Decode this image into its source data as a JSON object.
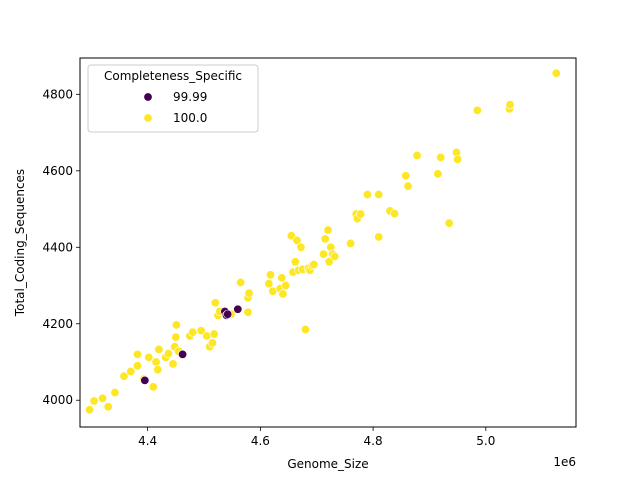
{
  "chart_data": {
    "type": "scatter",
    "xlabel": "Genome_Size",
    "ylabel": "Total_Coding_Sequences",
    "x_offset_label": "1e6",
    "x_scale": 1000000,
    "xlim": [
      4.28,
      5.16
    ],
    "ylim": [
      3930,
      4895
    ],
    "x_ticks": [
      4.4,
      4.6,
      4.8,
      5.0
    ],
    "x_tick_labels": [
      "4.4",
      "4.6",
      "4.8",
      "5.0"
    ],
    "y_ticks": [
      4000,
      4200,
      4400,
      4600,
      4800
    ],
    "y_tick_labels": [
      "4000",
      "4200",
      "4400",
      "4600",
      "4800"
    ],
    "grid": false,
    "legend": {
      "title": "Completeness_Specific",
      "placement": "top-left",
      "entries": [
        {
          "label": "99.99",
          "color": "#440154"
        },
        {
          "label": "100.0",
          "color": "#fde725"
        }
      ]
    },
    "series": [
      {
        "name": "100.0",
        "color": "#fde725",
        "points": [
          [
            4.297,
            3975
          ],
          [
            4.305,
            3998
          ],
          [
            4.32,
            4005
          ],
          [
            4.33,
            3983
          ],
          [
            4.342,
            4020
          ],
          [
            4.358,
            4063
          ],
          [
            4.37,
            4075
          ],
          [
            4.382,
            4090
          ],
          [
            4.382,
            4120
          ],
          [
            4.393,
            4055
          ],
          [
            4.402,
            4112
          ],
          [
            4.41,
            4035
          ],
          [
            4.415,
            4100
          ],
          [
            4.418,
            4080
          ],
          [
            4.42,
            4133
          ],
          [
            4.432,
            4112
          ],
          [
            4.437,
            4122
          ],
          [
            4.445,
            4095
          ],
          [
            4.448,
            4140
          ],
          [
            4.45,
            4165
          ],
          [
            4.451,
            4197
          ],
          [
            4.455,
            4128
          ],
          [
            4.475,
            4168
          ],
          [
            4.48,
            4178
          ],
          [
            4.495,
            4182
          ],
          [
            4.505,
            4168
          ],
          [
            4.51,
            4140
          ],
          [
            4.515,
            4150
          ],
          [
            4.518,
            4173
          ],
          [
            4.52,
            4255
          ],
          [
            4.525,
            4222
          ],
          [
            4.528,
            4232
          ],
          [
            4.548,
            4225
          ],
          [
            4.565,
            4308
          ],
          [
            4.578,
            4268
          ],
          [
            4.58,
            4280
          ],
          [
            4.578,
            4230
          ],
          [
            4.615,
            4305
          ],
          [
            4.618,
            4328
          ],
          [
            4.622,
            4285
          ],
          [
            4.635,
            4292
          ],
          [
            4.638,
            4320
          ],
          [
            4.64,
            4278
          ],
          [
            4.645,
            4300
          ],
          [
            4.655,
            4430
          ],
          [
            4.658,
            4335
          ],
          [
            4.662,
            4362
          ],
          [
            4.665,
            4418
          ],
          [
            4.668,
            4340
          ],
          [
            4.672,
            4400
          ],
          [
            4.675,
            4342
          ],
          [
            4.68,
            4185
          ],
          [
            4.685,
            4345
          ],
          [
            4.688,
            4340
          ],
          [
            4.692,
            4352
          ],
          [
            4.695,
            4355
          ],
          [
            4.712,
            4382
          ],
          [
            4.715,
            4422
          ],
          [
            4.72,
            4445
          ],
          [
            4.722,
            4362
          ],
          [
            4.725,
            4400
          ],
          [
            4.728,
            4382
          ],
          [
            4.732,
            4376
          ],
          [
            4.76,
            4410
          ],
          [
            4.77,
            4487
          ],
          [
            4.772,
            4475
          ],
          [
            4.778,
            4487
          ],
          [
            4.79,
            4538
          ],
          [
            4.81,
            4538
          ],
          [
            4.81,
            4427
          ],
          [
            4.83,
            4495
          ],
          [
            4.838,
            4488
          ],
          [
            4.858,
            4587
          ],
          [
            4.862,
            4560
          ],
          [
            4.878,
            4640
          ],
          [
            4.915,
            4592
          ],
          [
            4.92,
            4635
          ],
          [
            4.935,
            4463
          ],
          [
            4.948,
            4648
          ],
          [
            4.95,
            4630
          ],
          [
            4.985,
            4758
          ],
          [
            5.042,
            4762
          ],
          [
            5.043,
            4773
          ],
          [
            5.125,
            4855
          ]
        ]
      },
      {
        "name": "99.99",
        "color": "#440154",
        "points": [
          [
            4.395,
            4052
          ],
          [
            4.462,
            4120
          ],
          [
            4.537,
            4232
          ],
          [
            4.54,
            4222
          ],
          [
            4.542,
            4225
          ],
          [
            4.56,
            4238
          ]
        ]
      }
    ]
  }
}
